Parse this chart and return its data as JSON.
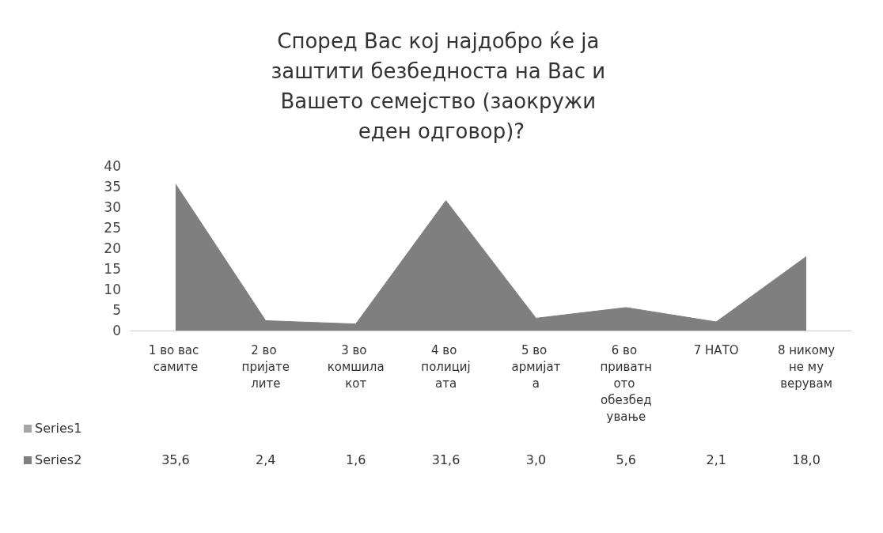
{
  "chart_data": {
    "type": "area",
    "title": "Според Вас кој најдобро ќе ја заштити безбедноста на Вас и Вашето семејство (заокружи еден одговор)?",
    "categories": [
      "1 во вас самите",
      "2 во пријателите",
      "3 во комшилакот",
      "4 во полицијата",
      "5 во армијата",
      "6 во приватното обезбедување",
      "7 НАТО",
      "8 никому не му верувам"
    ],
    "series": [
      {
        "name": "Series1",
        "color": "#a6a6a6",
        "values": [
          null,
          null,
          null,
          null,
          null,
          null,
          null,
          null
        ]
      },
      {
        "name": "Series2",
        "color": "#7f7f7f",
        "values": [
          35.6,
          2.4,
          1.6,
          31.6,
          3.0,
          5.6,
          2.1,
          18.0
        ],
        "value_labels": [
          "35,6",
          "2,4",
          "1,6",
          "31,6",
          "3,0",
          "5,6",
          "2,1",
          "18,0"
        ]
      }
    ],
    "ylim": [
      0,
      40
    ],
    "yticks": [
      0,
      5,
      10,
      15,
      20,
      25,
      30,
      35,
      40
    ],
    "grid": false,
    "legend": "bottom left"
  }
}
